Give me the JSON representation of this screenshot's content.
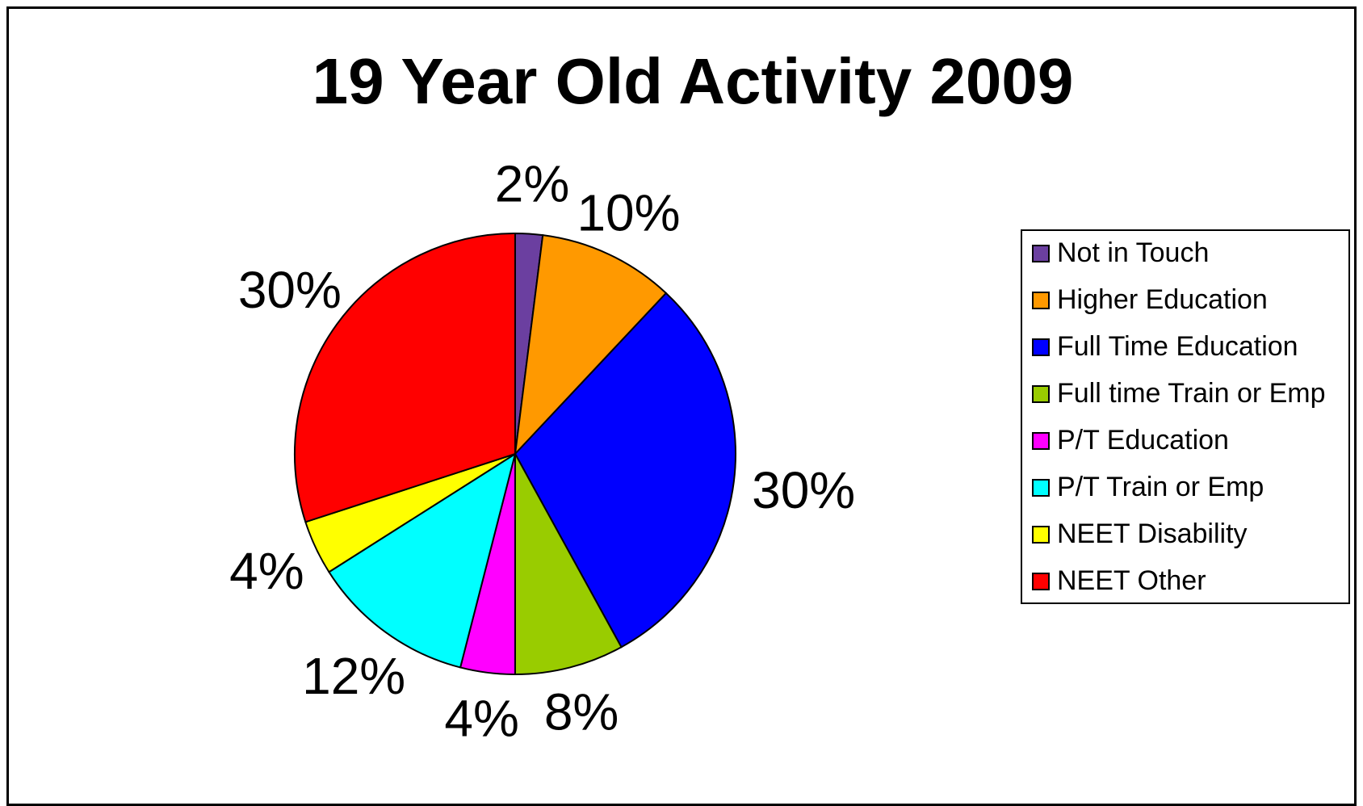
{
  "chart_data": {
    "type": "pie",
    "title": "19 Year Old Activity 2009",
    "start_angle_deg": 0,
    "direction": "clockwise",
    "legend_position": "right",
    "slices": [
      {
        "name": "Not in Touch",
        "value": 2,
        "label": "2%",
        "color": "#6B3FA0"
      },
      {
        "name": "Higher Education",
        "value": 10,
        "label": "10%",
        "color": "#FF9900"
      },
      {
        "name": "Full Time Education",
        "value": 30,
        "label": "30%",
        "color": "#0000FF"
      },
      {
        "name": "Full time Train or Emp",
        "value": 8,
        "label": "8%",
        "color": "#99CC00"
      },
      {
        "name": "P/T Education",
        "value": 4,
        "label": "4%",
        "color": "#FF00FF"
      },
      {
        "name": "P/T Train or Emp",
        "value": 12,
        "label": "12%",
        "color": "#00FFFF"
      },
      {
        "name": "NEET Disability",
        "value": 4,
        "label": "4%",
        "color": "#FFFF00"
      },
      {
        "name": "NEET Other",
        "value": 30,
        "label": "30%",
        "color": "#FF0000"
      }
    ]
  }
}
